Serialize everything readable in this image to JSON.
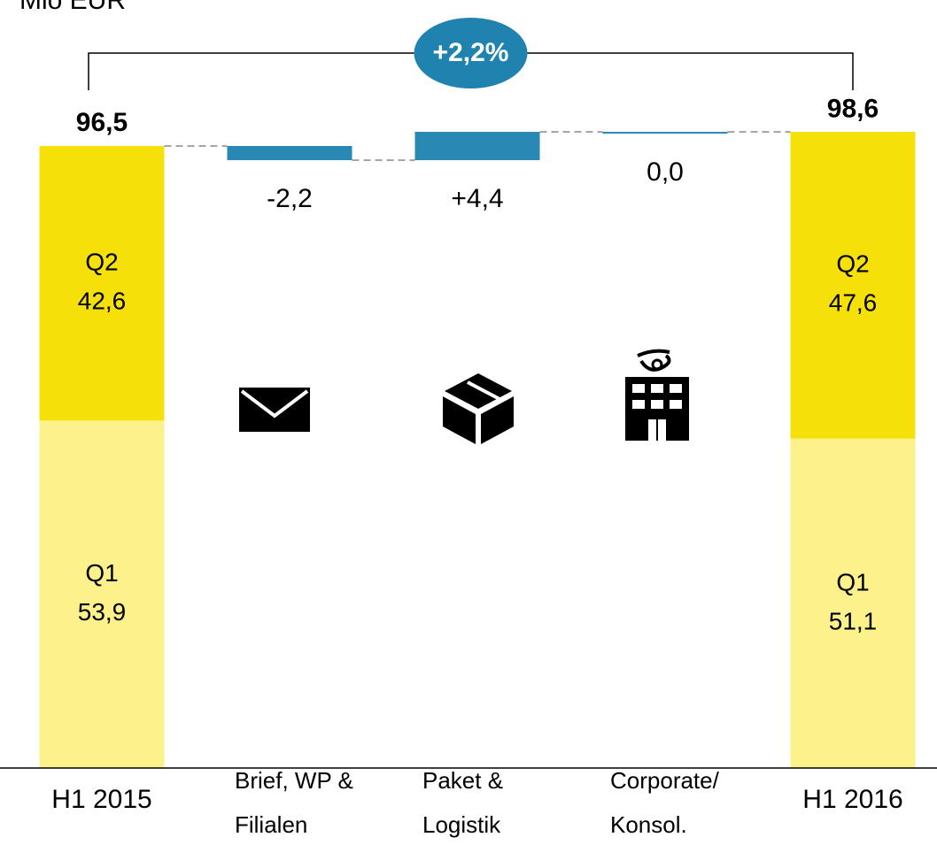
{
  "chart_data": {
    "type": "waterfall",
    "unit_label": "Mio EUR",
    "categories": [
      [
        "H1 2015"
      ],
      [
        "Brief, WP &",
        "Filialen"
      ],
      [
        "Paket &",
        "Logistik"
      ],
      [
        "Corporate/",
        "Konsol."
      ],
      [
        "H1 2016"
      ]
    ],
    "series": [
      {
        "name": "Q1",
        "color": "#fcf18a",
        "values": [
          53.9,
          null,
          null,
          null,
          51.1
        ],
        "value_labels": [
          "53,9",
          null,
          null,
          null,
          "51,1"
        ]
      },
      {
        "name": "Q2",
        "color": "#f5e00a",
        "values": [
          42.6,
          null,
          null,
          null,
          47.6
        ],
        "value_labels": [
          "42,6",
          null,
          null,
          null,
          "47,6"
        ]
      }
    ],
    "totals": [
      96.5,
      null,
      null,
      null,
      98.6
    ],
    "total_labels": [
      "96,5",
      null,
      null,
      null,
      "98,6"
    ],
    "deltas": [
      null,
      -2.2,
      4.4,
      0.0,
      null
    ],
    "delta_labels": [
      null,
      "-2,2",
      "+4,4",
      "0,0",
      null
    ],
    "delta_color": "#2a88b4",
    "change_label": "+2,2%",
    "change_color": "#2082ae",
    "ylim": [
      0,
      100
    ]
  }
}
